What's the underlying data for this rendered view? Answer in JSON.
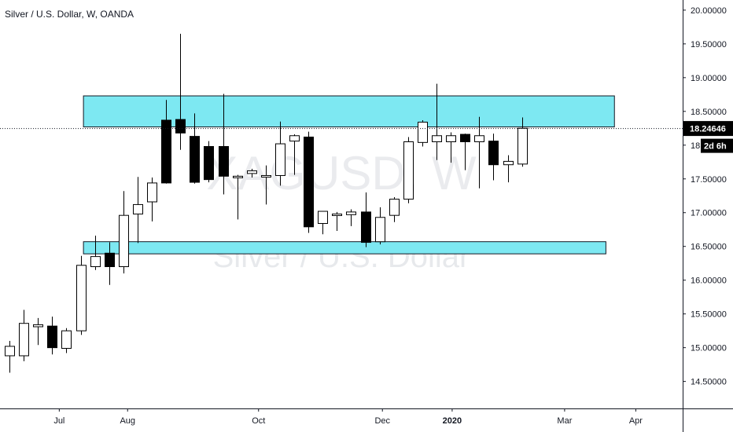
{
  "title": "Silver / U.S. Dollar, W, OANDA",
  "watermark": {
    "symbol": "XAGUSD, W",
    "description": "Silver / U.S. Dollar"
  },
  "price_axis": {
    "ticks": [
      "20.00000",
      "19.50000",
      "19.00000",
      "18.50000",
      "18.00000",
      "17.50000",
      "17.00000",
      "16.50000",
      "16.00000",
      "15.50000",
      "15.00000",
      "14.50000"
    ],
    "last_price_label": "18.24646",
    "countdown_label": "2d 6h"
  },
  "time_axis": {
    "labels": [
      {
        "text": "Jul",
        "week": 3.5,
        "bold": false
      },
      {
        "text": "Aug",
        "week": 8.3,
        "bold": false
      },
      {
        "text": "Oct",
        "week": 17.5,
        "bold": false
      },
      {
        "text": "Dec",
        "week": 26.2,
        "bold": false
      },
      {
        "text": "2020",
        "week": 31.1,
        "bold": true
      },
      {
        "text": "Mar",
        "week": 39.0,
        "bold": false
      },
      {
        "text": "Apr",
        "week": 44.0,
        "bold": false
      }
    ]
  },
  "colors": {
    "up": "#ffffff",
    "down": "#000000",
    "zone_fill": "#7de8f2",
    "zone_stroke": "#131722",
    "text": "#131722",
    "badge_bg": "#000000"
  },
  "chart_data": {
    "type": "candlestick",
    "symbol": "XAGUSD",
    "interval": "W",
    "ylim": [
      14.1,
      20.15
    ],
    "last_price": 18.24646,
    "zones": [
      {
        "from_week": 5.2,
        "to_week": 42.5,
        "low": 18.27,
        "high": 18.73
      },
      {
        "from_week": 5.2,
        "to_week": 41.9,
        "low": 16.39,
        "high": 16.57
      }
    ],
    "candles": [
      {
        "o": 14.88,
        "h": 15.1,
        "l": 14.63,
        "c": 15.02
      },
      {
        "o": 14.88,
        "h": 15.56,
        "l": 14.8,
        "c": 15.36
      },
      {
        "o": 15.31,
        "h": 15.44,
        "l": 15.04,
        "c": 15.34
      },
      {
        "o": 15.32,
        "h": 15.46,
        "l": 14.9,
        "c": 15.0
      },
      {
        "o": 14.99,
        "h": 15.29,
        "l": 14.92,
        "c": 15.25
      },
      {
        "o": 15.25,
        "h": 16.36,
        "l": 15.19,
        "c": 16.22
      },
      {
        "o": 16.2,
        "h": 16.66,
        "l": 16.15,
        "c": 16.35
      },
      {
        "o": 16.4,
        "h": 16.56,
        "l": 15.93,
        "c": 16.2
      },
      {
        "o": 16.2,
        "h": 17.32,
        "l": 16.1,
        "c": 16.96
      },
      {
        "o": 16.98,
        "h": 17.53,
        "l": 16.55,
        "c": 17.12
      },
      {
        "o": 17.16,
        "h": 17.52,
        "l": 16.87,
        "c": 17.44
      },
      {
        "o": 18.37,
        "h": 18.67,
        "l": 17.43,
        "c": 17.44
      },
      {
        "o": 18.38,
        "h": 19.65,
        "l": 17.93,
        "c": 18.18
      },
      {
        "o": 18.13,
        "h": 18.47,
        "l": 17.43,
        "c": 17.45
      },
      {
        "o": 17.98,
        "h": 18.06,
        "l": 17.45,
        "c": 17.49
      },
      {
        "o": 17.98,
        "h": 18.76,
        "l": 17.27,
        "c": 17.54
      },
      {
        "o": 17.52,
        "h": 17.56,
        "l": 16.9,
        "c": 17.54
      },
      {
        "o": 17.58,
        "h": 17.65,
        "l": 17.52,
        "c": 17.62
      },
      {
        "o": 17.55,
        "h": 17.7,
        "l": 17.12,
        "c": 17.55
      },
      {
        "o": 17.55,
        "h": 18.35,
        "l": 17.4,
        "c": 18.02
      },
      {
        "o": 18.06,
        "h": 18.16,
        "l": 17.56,
        "c": 18.14
      },
      {
        "o": 18.12,
        "h": 18.2,
        "l": 16.7,
        "c": 16.79
      },
      {
        "o": 16.84,
        "h": 16.98,
        "l": 16.68,
        "c": 17.02
      },
      {
        "o": 16.96,
        "h": 17.01,
        "l": 16.73,
        "c": 16.98
      },
      {
        "o": 16.97,
        "h": 17.05,
        "l": 16.8,
        "c": 17.01
      },
      {
        "o": 17.01,
        "h": 17.3,
        "l": 16.49,
        "c": 16.56
      },
      {
        "o": 16.57,
        "h": 17.08,
        "l": 16.53,
        "c": 16.93
      },
      {
        "o": 16.96,
        "h": 17.23,
        "l": 16.86,
        "c": 17.2
      },
      {
        "o": 17.2,
        "h": 18.12,
        "l": 17.14,
        "c": 18.05
      },
      {
        "o": 18.04,
        "h": 18.37,
        "l": 17.98,
        "c": 18.34
      },
      {
        "o": 18.05,
        "h": 18.91,
        "l": 17.78,
        "c": 18.14
      },
      {
        "o": 18.05,
        "h": 18.19,
        "l": 17.74,
        "c": 18.14
      },
      {
        "o": 18.16,
        "h": 18.17,
        "l": 17.63,
        "c": 18.05
      },
      {
        "o": 18.05,
        "h": 18.42,
        "l": 17.36,
        "c": 18.14
      },
      {
        "o": 18.06,
        "h": 18.17,
        "l": 17.48,
        "c": 17.71
      },
      {
        "o": 17.71,
        "h": 17.85,
        "l": 17.45,
        "c": 17.76
      },
      {
        "o": 17.72,
        "h": 18.41,
        "l": 17.68,
        "c": 18.25
      }
    ]
  }
}
